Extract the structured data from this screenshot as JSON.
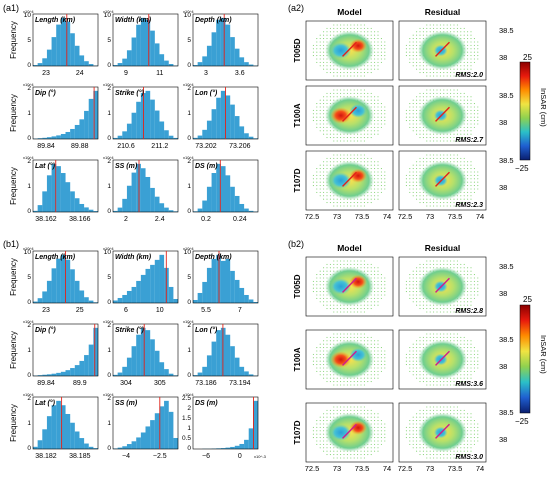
{
  "figure": {
    "colors": {
      "bar": "#3aa0d4",
      "bar_edge": "#2a86b8",
      "red_line": "#e2231a",
      "text": "#000000"
    },
    "panel_a1": {
      "label": "(a1)"
    },
    "panel_b1": {
      "label": "(b1)"
    },
    "panel_a2": {
      "label": "(a2)",
      "col_model": "Model",
      "col_residual": "Residual",
      "rows": [
        {
          "track": "T005D",
          "rms": "RMS:2.0"
        },
        {
          "track": "T100A",
          "rms": "RMS:2.7"
        },
        {
          "track": "T107D",
          "rms": "RMS:2.3"
        }
      ],
      "lat_ticks": [
        "38.5",
        "38"
      ],
      "lon_ticks": [
        "72.5",
        "73",
        "73.5",
        "74"
      ]
    },
    "panel_b2": {
      "label": "(b2)",
      "col_model": "Model",
      "col_residual": "Residual",
      "rows": [
        {
          "track": "T005D",
          "rms": "RMS:2.8"
        },
        {
          "track": "T100A",
          "rms": "RMS:3.6"
        },
        {
          "track": "T107D",
          "rms": "RMS:3.0"
        }
      ],
      "lat_ticks": [
        "38.5",
        "38"
      ],
      "lon_ticks": [
        "72.5",
        "73",
        "73.5",
        "74"
      ]
    },
    "colorbar": {
      "label": "InSAR (cm)",
      "max_label": "25",
      "min_label": "−25",
      "stops": [
        "#8b0000",
        "#e81a0d",
        "#ff8c00",
        "#f0e442",
        "#8fd14f",
        "#2bc0c8",
        "#1f5fd0",
        "#0a1e6e"
      ]
    }
  },
  "chart_data": [
    {
      "type": "bar",
      "panel": "a1",
      "title": "Length (km)",
      "ylabel": "Frequency",
      "ymax_label": "10",
      "exp_label": "x10^4",
      "yticks": [
        "10",
        "5",
        "0"
      ],
      "xticks": [
        "23",
        "24"
      ],
      "values": [
        0.2,
        0.6,
        1.6,
        3.4,
        6.0,
        8.6,
        10.0,
        9.2,
        6.8,
        4.2,
        2.2,
        1.0,
        0.4,
        0.1
      ],
      "red_line_frac": 0.52
    },
    {
      "type": "bar",
      "panel": "a1",
      "title": "Width (km)",
      "exp_label": "x10^4",
      "yticks": [
        "10",
        "5",
        "0"
      ],
      "xticks": [
        "9",
        "11"
      ],
      "values": [
        0.2,
        0.6,
        1.5,
        3.2,
        5.8,
        8.4,
        9.8,
        9.4,
        7.2,
        4.6,
        2.4,
        1.1,
        0.4,
        0.1
      ],
      "red_line_frac": 0.55
    },
    {
      "type": "bar",
      "panel": "a1",
      "title": "Depth (km)",
      "exp_label": "x10^4",
      "yticks": [
        "10",
        "5",
        "0"
      ],
      "xticks": [
        "3",
        "3.6"
      ],
      "values": [
        0.2,
        0.8,
        2.0,
        4.2,
        7.0,
        9.6,
        10.0,
        8.6,
        6.0,
        3.6,
        1.8,
        0.8,
        0.3,
        0.1
      ],
      "red_line_frac": 0.48
    },
    {
      "type": "bar",
      "panel": "a1",
      "title": "Dip (°)",
      "ylabel": "Frequency",
      "exp_label": "x10^4",
      "yticks": [
        "2",
        "1",
        "0"
      ],
      "xticks": [
        "89.84",
        "89.88"
      ],
      "values": [
        0.02,
        0.04,
        0.06,
        0.09,
        0.13,
        0.18,
        0.25,
        0.35,
        0.5,
        0.7,
        0.98,
        1.4,
        2.0,
        2.4
      ],
      "red_line_frac": 0.94
    },
    {
      "type": "bar",
      "panel": "a1",
      "title": "Strike (°)",
      "exp_label": "x10^4",
      "yticks": [
        "2",
        "1",
        "0"
      ],
      "xticks": [
        "210.6",
        "211.2"
      ],
      "values": [
        0.05,
        0.15,
        0.35,
        0.7,
        1.2,
        1.7,
        2.1,
        2.2,
        1.8,
        1.3,
        0.8,
        0.4,
        0.15,
        0.05
      ],
      "red_line_frac": 0.47
    },
    {
      "type": "bar",
      "panel": "a1",
      "title": "Lon (°)",
      "exp_label": "x10^4",
      "yticks": [
        "2",
        "1",
        "0"
      ],
      "xticks": [
        "73.202",
        "73.206"
      ],
      "values": [
        0.05,
        0.15,
        0.4,
        0.8,
        1.3,
        1.8,
        2.1,
        1.9,
        1.5,
        1.0,
        0.55,
        0.25,
        0.1,
        0.03
      ],
      "red_line_frac": 0.5
    },
    {
      "type": "bar",
      "panel": "a1",
      "title": "Lat (°)",
      "ylabel": "Frequency",
      "exp_label": "x10^4",
      "yticks": [
        "2",
        "1",
        "0"
      ],
      "xticks": [
        "38.162",
        "38.166"
      ],
      "values": [
        0.05,
        0.3,
        0.9,
        1.6,
        2.1,
        2.0,
        1.7,
        1.3,
        0.9,
        0.6,
        0.35,
        0.2,
        0.1,
        0.04
      ],
      "red_line_frac": 0.35
    },
    {
      "type": "bar",
      "panel": "a1",
      "title": "SS (m)",
      "exp_label": "x10^4",
      "yticks": [
        "2",
        "1",
        "0"
      ],
      "xticks": [
        "2",
        "2.4"
      ],
      "values": [
        0.05,
        0.2,
        0.6,
        1.2,
        1.8,
        2.2,
        2.0,
        1.6,
        1.1,
        0.7,
        0.4,
        0.2,
        0.08,
        0.03
      ],
      "red_line_frac": 0.4
    },
    {
      "type": "bar",
      "panel": "a1",
      "title": "DS (m)",
      "exp_label": "x10^4",
      "yticks": [
        "2",
        "1",
        "0"
      ],
      "xticks": [
        "0.2",
        "0.24"
      ],
      "values": [
        0.03,
        0.15,
        0.5,
        1.1,
        1.7,
        2.1,
        2.0,
        1.6,
        1.1,
        0.7,
        0.35,
        0.15,
        0.05,
        0.02
      ],
      "red_line_frac": 0.42
    },
    {
      "type": "bar",
      "panel": "b1",
      "title": "Length (km)",
      "ylabel": "Frequency",
      "exp_label": "x10^4",
      "yticks": [
        "10",
        "5",
        "0"
      ],
      "xticks": [
        "23",
        "25"
      ],
      "values": [
        0.3,
        1.0,
        2.4,
        4.6,
        7.2,
        9.2,
        10.0,
        9.0,
        7.0,
        4.6,
        2.6,
        1.2,
        0.5,
        0.15
      ],
      "red_line_frac": 0.5
    },
    {
      "type": "bar",
      "panel": "b1",
      "title": "Width (km)",
      "exp_label": "x10^4",
      "yticks": [
        "10",
        "5",
        "0"
      ],
      "xticks": [
        "6",
        "10"
      ],
      "values": [
        0.5,
        1.0,
        1.6,
        2.4,
        3.2,
        4.4,
        5.6,
        6.8,
        7.6,
        8.6,
        9.6,
        7.0,
        3.2,
        0.8
      ],
      "red_line_frac": 0.82
    },
    {
      "type": "bar",
      "panel": "b1",
      "title": "Depth (km)",
      "exp_label": "x10^4",
      "yticks": [
        "10",
        "5",
        "0"
      ],
      "xticks": [
        "5.5",
        "7"
      ],
      "values": [
        0.6,
        2.0,
        4.2,
        7.0,
        8.8,
        9.6,
        8.4,
        8.8,
        6.4,
        4.6,
        3.0,
        1.6,
        0.7,
        0.2
      ],
      "red_line_frac": 0.4
    },
    {
      "type": "bar",
      "panel": "b1",
      "title": "Dip (°)",
      "ylabel": "Frequency",
      "exp_label": "x10^4",
      "yticks": [
        "2",
        "1",
        "0"
      ],
      "xticks": [
        "89.84",
        "89.9"
      ],
      "values": [
        0.02,
        0.04,
        0.06,
        0.08,
        0.11,
        0.15,
        0.2,
        0.28,
        0.38,
        0.52,
        0.72,
        1.0,
        1.5,
        2.3
      ],
      "red_line_frac": 0.95
    },
    {
      "type": "bar",
      "panel": "b1",
      "title": "Strike (°)",
      "exp_label": "x10^4",
      "yticks": [
        "2",
        "1",
        "0"
      ],
      "xticks": [
        "304",
        "305"
      ],
      "values": [
        0.05,
        0.15,
        0.4,
        0.8,
        1.3,
        1.8,
        2.1,
        2.0,
        1.6,
        1.1,
        0.6,
        0.3,
        0.1,
        0.03
      ],
      "red_line_frac": 0.48
    },
    {
      "type": "bar",
      "panel": "b1",
      "title": "Lon (°)",
      "exp_label": "x10^4",
      "yticks": [
        "2",
        "1",
        "0"
      ],
      "xticks": [
        "73.186",
        "73.194"
      ],
      "values": [
        0.04,
        0.15,
        0.4,
        0.9,
        1.5,
        2.0,
        2.1,
        1.8,
        1.3,
        0.8,
        0.4,
        0.2,
        0.07,
        0.02
      ],
      "red_line_frac": 0.46
    },
    {
      "type": "bar",
      "panel": "b1",
      "title": "Lat (°)",
      "ylabel": "Frequency",
      "exp_label": "x10^4",
      "yticks": [
        "2",
        "1",
        "0"
      ],
      "xticks": [
        "38.182",
        "38.185"
      ],
      "values": [
        0.1,
        0.4,
        0.9,
        1.5,
        2.0,
        2.2,
        2.0,
        1.6,
        1.2,
        0.8,
        0.5,
        0.25,
        0.1,
        0.04
      ],
      "red_line_frac": 0.44
    },
    {
      "type": "bar",
      "panel": "b1",
      "title": "SS (m)",
      "exp_label": "x10^4",
      "yticks": [
        "2",
        "1",
        "0"
      ],
      "xticks": [
        "−4",
        "−2.5"
      ],
      "values": [
        0.02,
        0.05,
        0.1,
        0.18,
        0.28,
        0.42,
        0.6,
        0.82,
        1.05,
        1.3,
        1.55,
        1.75,
        1.35,
        0.4
      ],
      "red_line_frac": 0.72
    },
    {
      "type": "bar",
      "panel": "b1",
      "title": "DS (m)",
      "exp_label": "x10^4",
      "yticks": [
        "2.5",
        "2",
        "1.5",
        "1",
        "0.5",
        "0"
      ],
      "xticks": [
        "−6",
        "0"
      ],
      "extra_label": "x10^-3",
      "values": [
        0.0,
        0.0,
        0.01,
        0.01,
        0.02,
        0.03,
        0.04,
        0.06,
        0.09,
        0.14,
        0.22,
        0.4,
        0.9,
        2.1
      ],
      "red_line_frac": 0.93
    }
  ]
}
